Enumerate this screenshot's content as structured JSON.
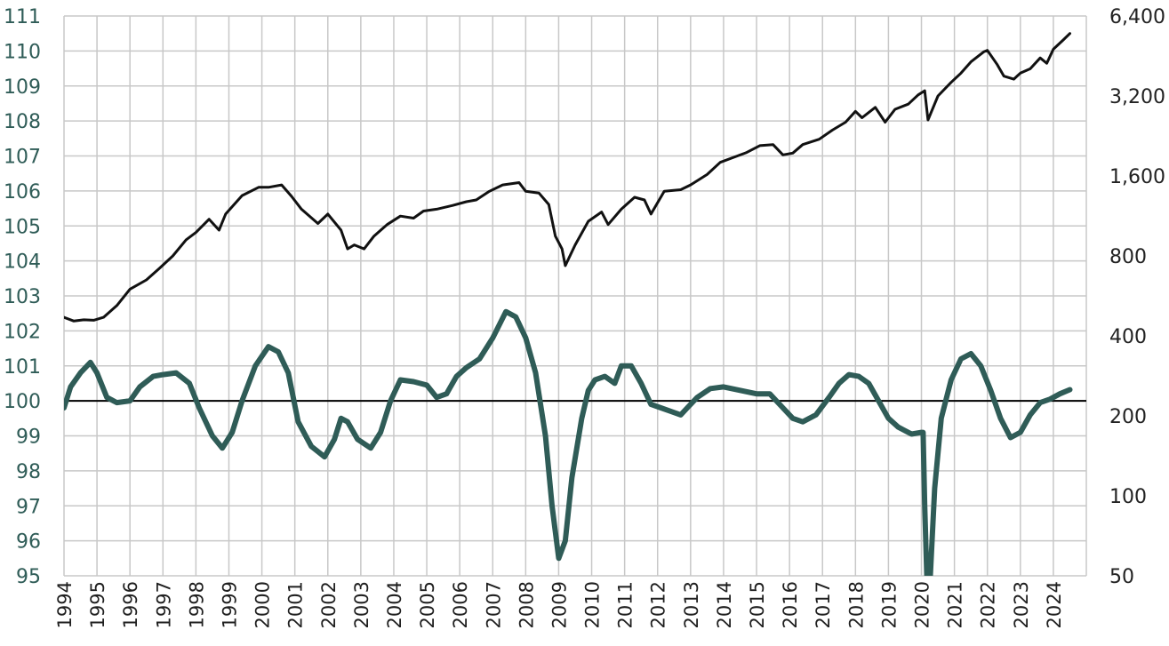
{
  "chart_data": {
    "type": "line",
    "title": "",
    "xlabel": "",
    "ylabel_left": "",
    "ylabel_right": "",
    "grid": true,
    "legend": "none",
    "x_range": [
      1994.0,
      2025.0
    ],
    "left_axis": {
      "range": [
        95,
        111
      ],
      "ticks": [
        "95",
        "96",
        "97",
        "98",
        "99",
        "100",
        "101",
        "102",
        "103",
        "104",
        "105",
        "106",
        "107",
        "108",
        "109",
        "110",
        "111"
      ],
      "color": "#2f5c57"
    },
    "right_axis": {
      "scale": "log",
      "range": [
        50,
        6400
      ],
      "ticks": [
        {
          "value": 50,
          "label": "50"
        },
        {
          "value": 100,
          "label": "100"
        },
        {
          "value": 200,
          "label": "200"
        },
        {
          "value": 400,
          "label": "400"
        },
        {
          "value": 800,
          "label": "800"
        },
        {
          "value": 1600,
          "label": "1,600"
        },
        {
          "value": 3200,
          "label": "3,200"
        },
        {
          "value": 6400,
          "label": "6,400"
        }
      ],
      "color": "#222222"
    },
    "x_ticks": [
      "1994",
      "1995",
      "1996",
      "1997",
      "1998",
      "1999",
      "2000",
      "2001",
      "2002",
      "2003",
      "2004",
      "2005",
      "2006",
      "2007",
      "2008",
      "2009",
      "2010",
      "2011",
      "2012",
      "2013",
      "2014",
      "2015",
      "2016",
      "2017",
      "2018",
      "2019",
      "2020",
      "2021",
      "2022",
      "2023",
      "2024"
    ],
    "reference_line": {
      "axis": "left",
      "value": 100
    },
    "series": [
      {
        "axis": "right",
        "color": "#111111",
        "points": [
          [
            1994.0,
            470
          ],
          [
            1994.3,
            455
          ],
          [
            1994.6,
            460
          ],
          [
            1994.9,
            458
          ],
          [
            1995.2,
            470
          ],
          [
            1995.6,
            520
          ],
          [
            1996.0,
            600
          ],
          [
            1996.5,
            650
          ],
          [
            1996.9,
            720
          ],
          [
            1997.3,
            800
          ],
          [
            1997.7,
            920
          ],
          [
            1998.0,
            980
          ],
          [
            1998.4,
            1100
          ],
          [
            1998.7,
            1000
          ],
          [
            1998.9,
            1150
          ],
          [
            1999.4,
            1350
          ],
          [
            1999.9,
            1450
          ],
          [
            2000.2,
            1450
          ],
          [
            2000.6,
            1480
          ],
          [
            2000.9,
            1340
          ],
          [
            2001.2,
            1200
          ],
          [
            2001.7,
            1060
          ],
          [
            2002.0,
            1150
          ],
          [
            2002.4,
            1000
          ],
          [
            2002.6,
            850
          ],
          [
            2002.8,
            880
          ],
          [
            2003.1,
            850
          ],
          [
            2003.4,
            950
          ],
          [
            2003.8,
            1050
          ],
          [
            2004.2,
            1130
          ],
          [
            2004.6,
            1110
          ],
          [
            2004.9,
            1180
          ],
          [
            2005.3,
            1200
          ],
          [
            2005.8,
            1240
          ],
          [
            2006.2,
            1280
          ],
          [
            2006.5,
            1300
          ],
          [
            2006.9,
            1400
          ],
          [
            2007.3,
            1480
          ],
          [
            2007.8,
            1510
          ],
          [
            2008.0,
            1400
          ],
          [
            2008.4,
            1380
          ],
          [
            2008.7,
            1250
          ],
          [
            2008.9,
            950
          ],
          [
            2009.1,
            850
          ],
          [
            2009.2,
            735
          ],
          [
            2009.5,
            880
          ],
          [
            2009.9,
            1080
          ],
          [
            2010.3,
            1170
          ],
          [
            2010.5,
            1050
          ],
          [
            2010.9,
            1200
          ],
          [
            2011.3,
            1330
          ],
          [
            2011.6,
            1300
          ],
          [
            2011.8,
            1150
          ],
          [
            2012.2,
            1400
          ],
          [
            2012.7,
            1420
          ],
          [
            2013.0,
            1480
          ],
          [
            2013.5,
            1620
          ],
          [
            2013.9,
            1800
          ],
          [
            2014.3,
            1880
          ],
          [
            2014.7,
            1960
          ],
          [
            2015.1,
            2080
          ],
          [
            2015.5,
            2100
          ],
          [
            2015.8,
            1920
          ],
          [
            2016.1,
            1950
          ],
          [
            2016.4,
            2100
          ],
          [
            2016.9,
            2200
          ],
          [
            2017.3,
            2380
          ],
          [
            2017.7,
            2550
          ],
          [
            2018.0,
            2800
          ],
          [
            2018.2,
            2650
          ],
          [
            2018.6,
            2900
          ],
          [
            2018.9,
            2550
          ],
          [
            2019.2,
            2850
          ],
          [
            2019.6,
            2980
          ],
          [
            2019.9,
            3230
          ],
          [
            2020.1,
            3350
          ],
          [
            2020.2,
            2600
          ],
          [
            2020.5,
            3200
          ],
          [
            2020.9,
            3600
          ],
          [
            2021.2,
            3900
          ],
          [
            2021.5,
            4300
          ],
          [
            2021.9,
            4700
          ],
          [
            2022.0,
            4750
          ],
          [
            2022.3,
            4200
          ],
          [
            2022.5,
            3800
          ],
          [
            2022.8,
            3700
          ],
          [
            2023.0,
            3900
          ],
          [
            2023.3,
            4050
          ],
          [
            2023.6,
            4450
          ],
          [
            2023.8,
            4250
          ],
          [
            2024.0,
            4800
          ],
          [
            2024.3,
            5200
          ],
          [
            2024.5,
            5500
          ]
        ]
      },
      {
        "axis": "left",
        "color": "#2f5c57",
        "points": [
          [
            1994.0,
            99.8
          ],
          [
            1994.2,
            100.4
          ],
          [
            1994.5,
            100.8
          ],
          [
            1994.8,
            101.1
          ],
          [
            1995.0,
            100.8
          ],
          [
            1995.3,
            100.1
          ],
          [
            1995.6,
            99.95
          ],
          [
            1996.0,
            100.0
          ],
          [
            1996.3,
            100.4
          ],
          [
            1996.7,
            100.7
          ],
          [
            1997.0,
            100.75
          ],
          [
            1997.4,
            100.8
          ],
          [
            1997.8,
            100.5
          ],
          [
            1998.1,
            99.8
          ],
          [
            1998.5,
            99.0
          ],
          [
            1998.8,
            98.65
          ],
          [
            1999.1,
            99.1
          ],
          [
            1999.4,
            100.0
          ],
          [
            1999.8,
            101.0
          ],
          [
            2000.2,
            101.55
          ],
          [
            2000.5,
            101.4
          ],
          [
            2000.8,
            100.8
          ],
          [
            2001.1,
            99.4
          ],
          [
            2001.5,
            98.7
          ],
          [
            2001.9,
            98.4
          ],
          [
            2002.2,
            98.9
          ],
          [
            2002.4,
            99.5
          ],
          [
            2002.6,
            99.4
          ],
          [
            2002.9,
            98.9
          ],
          [
            2003.3,
            98.65
          ],
          [
            2003.6,
            99.1
          ],
          [
            2003.9,
            100.0
          ],
          [
            2004.2,
            100.6
          ],
          [
            2004.6,
            100.55
          ],
          [
            2005.0,
            100.45
          ],
          [
            2005.3,
            100.1
          ],
          [
            2005.6,
            100.2
          ],
          [
            2005.9,
            100.7
          ],
          [
            2006.2,
            100.95
          ],
          [
            2006.6,
            101.2
          ],
          [
            2007.0,
            101.8
          ],
          [
            2007.4,
            102.55
          ],
          [
            2007.7,
            102.4
          ],
          [
            2008.0,
            101.8
          ],
          [
            2008.3,
            100.8
          ],
          [
            2008.6,
            99.0
          ],
          [
            2008.8,
            97.0
          ],
          [
            2009.0,
            95.5
          ],
          [
            2009.2,
            96.0
          ],
          [
            2009.4,
            97.8
          ],
          [
            2009.7,
            99.5
          ],
          [
            2009.9,
            100.3
          ],
          [
            2010.1,
            100.6
          ],
          [
            2010.4,
            100.7
          ],
          [
            2010.7,
            100.5
          ],
          [
            2010.9,
            101.0
          ],
          [
            2011.2,
            101.0
          ],
          [
            2011.5,
            100.5
          ],
          [
            2011.8,
            99.9
          ],
          [
            2012.1,
            99.8
          ],
          [
            2012.4,
            99.7
          ],
          [
            2012.7,
            99.6
          ],
          [
            2012.9,
            99.8
          ],
          [
            2013.2,
            100.1
          ],
          [
            2013.6,
            100.35
          ],
          [
            2014.0,
            100.4
          ],
          [
            2014.5,
            100.3
          ],
          [
            2015.0,
            100.2
          ],
          [
            2015.4,
            100.2
          ],
          [
            2015.8,
            99.8
          ],
          [
            2016.1,
            99.5
          ],
          [
            2016.4,
            99.4
          ],
          [
            2016.8,
            99.6
          ],
          [
            2017.2,
            100.1
          ],
          [
            2017.5,
            100.5
          ],
          [
            2017.8,
            100.75
          ],
          [
            2018.1,
            100.7
          ],
          [
            2018.4,
            100.5
          ],
          [
            2018.7,
            100.0
          ],
          [
            2019.0,
            99.5
          ],
          [
            2019.3,
            99.25
          ],
          [
            2019.7,
            99.05
          ],
          [
            2020.0,
            99.1
          ],
          [
            2020.05,
            99.1
          ],
          [
            2020.1,
            97.0
          ],
          [
            2020.17,
            94.8
          ],
          [
            2020.27,
            95.0
          ],
          [
            2020.4,
            97.5
          ],
          [
            2020.6,
            99.5
          ],
          [
            2020.9,
            100.6
          ],
          [
            2021.2,
            101.2
          ],
          [
            2021.5,
            101.35
          ],
          [
            2021.8,
            101.0
          ],
          [
            2022.1,
            100.3
          ],
          [
            2022.4,
            99.5
          ],
          [
            2022.7,
            98.95
          ],
          [
            2023.0,
            99.1
          ],
          [
            2023.3,
            99.6
          ],
          [
            2023.6,
            99.95
          ],
          [
            2023.9,
            100.05
          ],
          [
            2024.2,
            100.2
          ],
          [
            2024.5,
            100.32
          ]
        ]
      }
    ]
  }
}
